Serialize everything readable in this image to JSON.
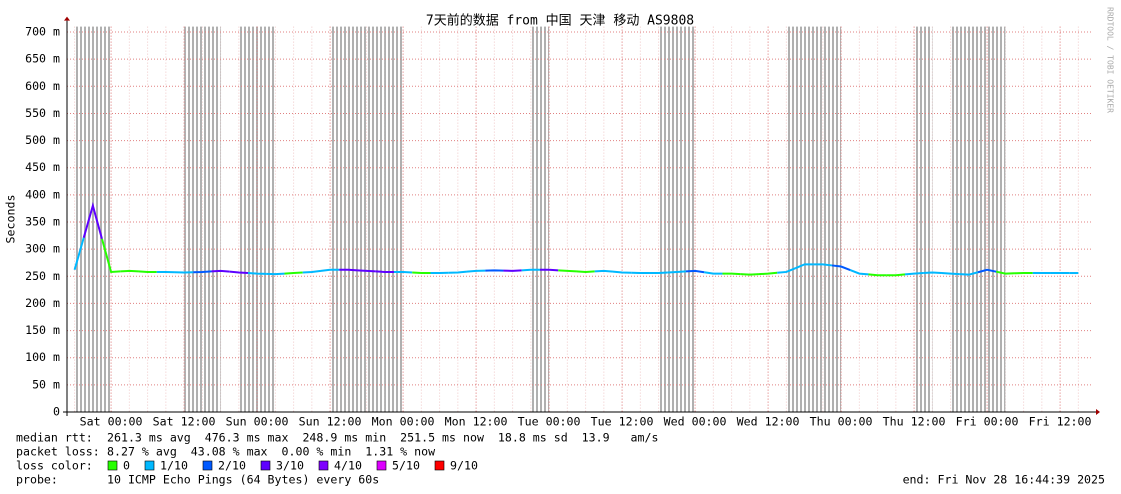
{
  "chart_data": {
    "type": "line",
    "title": "7天前的数据 from 中国 天津 移动 AS9808",
    "y_label": "Seconds",
    "watermark": "RRDTOOL / TOBI OETIKER",
    "x": [
      "Fri 18:00",
      "Fri 21:00",
      "Sat 00:00",
      "Sat 03:00",
      "Sat 06:00",
      "Sat 09:00",
      "Sat 12:00",
      "Sat 15:00",
      "Sat 18:00",
      "Sat 21:00",
      "Sun 00:00",
      "Sun 03:00",
      "Sun 06:00",
      "Sun 09:00",
      "Sun 12:00",
      "Sun 15:00",
      "Sun 18:00",
      "Sun 21:00",
      "Mon 00:00",
      "Mon 03:00",
      "Mon 06:00",
      "Mon 09:00",
      "Mon 12:00",
      "Mon 15:00",
      "Mon 18:00",
      "Mon 21:00",
      "Tue 00:00",
      "Tue 03:00",
      "Tue 06:00",
      "Tue 09:00",
      "Tue 12:00",
      "Tue 15:00",
      "Tue 18:00",
      "Tue 21:00",
      "Wed 00:00",
      "Wed 03:00",
      "Wed 06:00",
      "Wed 09:00",
      "Wed 12:00",
      "Wed 15:00",
      "Wed 18:00",
      "Wed 21:00",
      "Thu 00:00",
      "Thu 03:00",
      "Thu 06:00",
      "Thu 09:00",
      "Thu 12:00",
      "Thu 15:00",
      "Thu 18:00",
      "Thu 21:00",
      "Fri 00:00",
      "Fri 03:00",
      "Fri 06:00",
      "Fri 09:00",
      "Fri 12:00",
      "Fri 15:00"
    ],
    "xticks": [
      "Sat 00:00",
      "Sat 12:00",
      "Sun 00:00",
      "Sun 12:00",
      "Mon 00:00",
      "Mon 12:00",
      "Tue 00:00",
      "Tue 12:00",
      "Wed 00:00",
      "Wed 12:00",
      "Thu 00:00",
      "Thu 12:00",
      "Fri 00:00",
      "Fri 12:00"
    ],
    "ylim": [
      0,
      0.71
    ],
    "yticks": [
      0,
      {
        "value": 0.05,
        "label": "50 m"
      },
      {
        "value": 0.1,
        "label": "100 m"
      },
      {
        "value": 0.15,
        "label": "150 m"
      },
      {
        "value": 0.2,
        "label": "200 m"
      },
      {
        "value": 0.25,
        "label": "250 m"
      },
      {
        "value": 0.3,
        "label": "300 m"
      },
      {
        "value": 0.35,
        "label": "350 m"
      },
      {
        "value": 0.4,
        "label": "400 m"
      },
      {
        "value": 0.45,
        "label": "450 m"
      },
      {
        "value": 0.5,
        "label": "500 m"
      },
      {
        "value": 0.55,
        "label": "550 m"
      },
      {
        "value": 0.6,
        "label": "600 m"
      },
      {
        "value": 0.65,
        "label": "650 m"
      },
      {
        "value": 0.7,
        "label": "700 m"
      }
    ],
    "grid": true,
    "series": [
      {
        "values": [
          0.262,
          0.38,
          0.258,
          0.26,
          0.258,
          0.258,
          0.257,
          0.258,
          0.26,
          0.257,
          0.255,
          0.254,
          0.256,
          0.258,
          0.262,
          0.262,
          0.26,
          0.258,
          0.258,
          0.256,
          0.256,
          0.257,
          0.26,
          0.261,
          0.26,
          0.262,
          0.262,
          0.26,
          0.258,
          0.26,
          0.257,
          0.256,
          0.256,
          0.258,
          0.26,
          0.255,
          0.255,
          0.253,
          0.255,
          0.258,
          0.272,
          0.272,
          0.268,
          0.255,
          0.252,
          0.252,
          0.255,
          0.257,
          0.255,
          0.253,
          0.262,
          0.255,
          0.256,
          0.256,
          0.256,
          0.256
        ],
        "loss": [
          1,
          3,
          0,
          0,
          0,
          1,
          1,
          2,
          3,
          3,
          1,
          1,
          0,
          1,
          1,
          3,
          3,
          3,
          1,
          0,
          1,
          1,
          1,
          2,
          3,
          1,
          3,
          0,
          0,
          1,
          1,
          1,
          1,
          1,
          2,
          1,
          0,
          0,
          0,
          1,
          1,
          1,
          2,
          1,
          0,
          0,
          1,
          1,
          1,
          1,
          2,
          0,
          0,
          1,
          1,
          1
        ]
      }
    ],
    "loss_bands": [
      [
        "Fri 18:00",
        "Sat 00:00"
      ],
      [
        "Sat 12:00",
        "Sat 18:00"
      ],
      [
        "Sat 21:00",
        "Sun 03:00"
      ],
      [
        "Sun 12:00",
        "Sun 21:00"
      ],
      [
        "Sun 21:00",
        "Mon 00:00"
      ],
      [
        "Mon 21:00",
        "Tue 00:00"
      ],
      [
        "Tue 18:00",
        "Wed 00:00"
      ],
      [
        "Wed 15:00",
        "Thu 00:00"
      ],
      [
        "Thu 12:00",
        "Thu 15:00"
      ],
      [
        "Thu 18:00",
        "Fri 03:00"
      ]
    ],
    "band_color": "#b0b0b0",
    "stats": [
      {
        "label": "median rtt:",
        "text": "261.3 ms avg  476.3 ms max  248.9 ms min  251.5 ms now  18.8 ms sd  13.9   am/s"
      },
      {
        "label": "packet loss:",
        "text": "8.27 % avg  43.08 % max  0.00 % min  1.31 % now"
      }
    ],
    "loss_label": "loss color:",
    "loss_colors": [
      {
        "label": "0",
        "color": "#26ff00"
      },
      {
        "label": "1/10",
        "color": "#00b8ff"
      },
      {
        "label": "2/10",
        "color": "#0059ff"
      },
      {
        "label": "3/10",
        "color": "#5e00ff"
      },
      {
        "label": "4/10",
        "color": "#7e00ff"
      },
      {
        "label": "5/10",
        "color": "#dd00ff"
      },
      {
        "label": "9/10",
        "color": "#ff0000"
      }
    ],
    "probe_label": "probe:",
    "probe": "10 ICMP Echo Pings (64 Bytes) every 60s",
    "end": "end: Fri Nov 28 16:44:39 2025"
  }
}
